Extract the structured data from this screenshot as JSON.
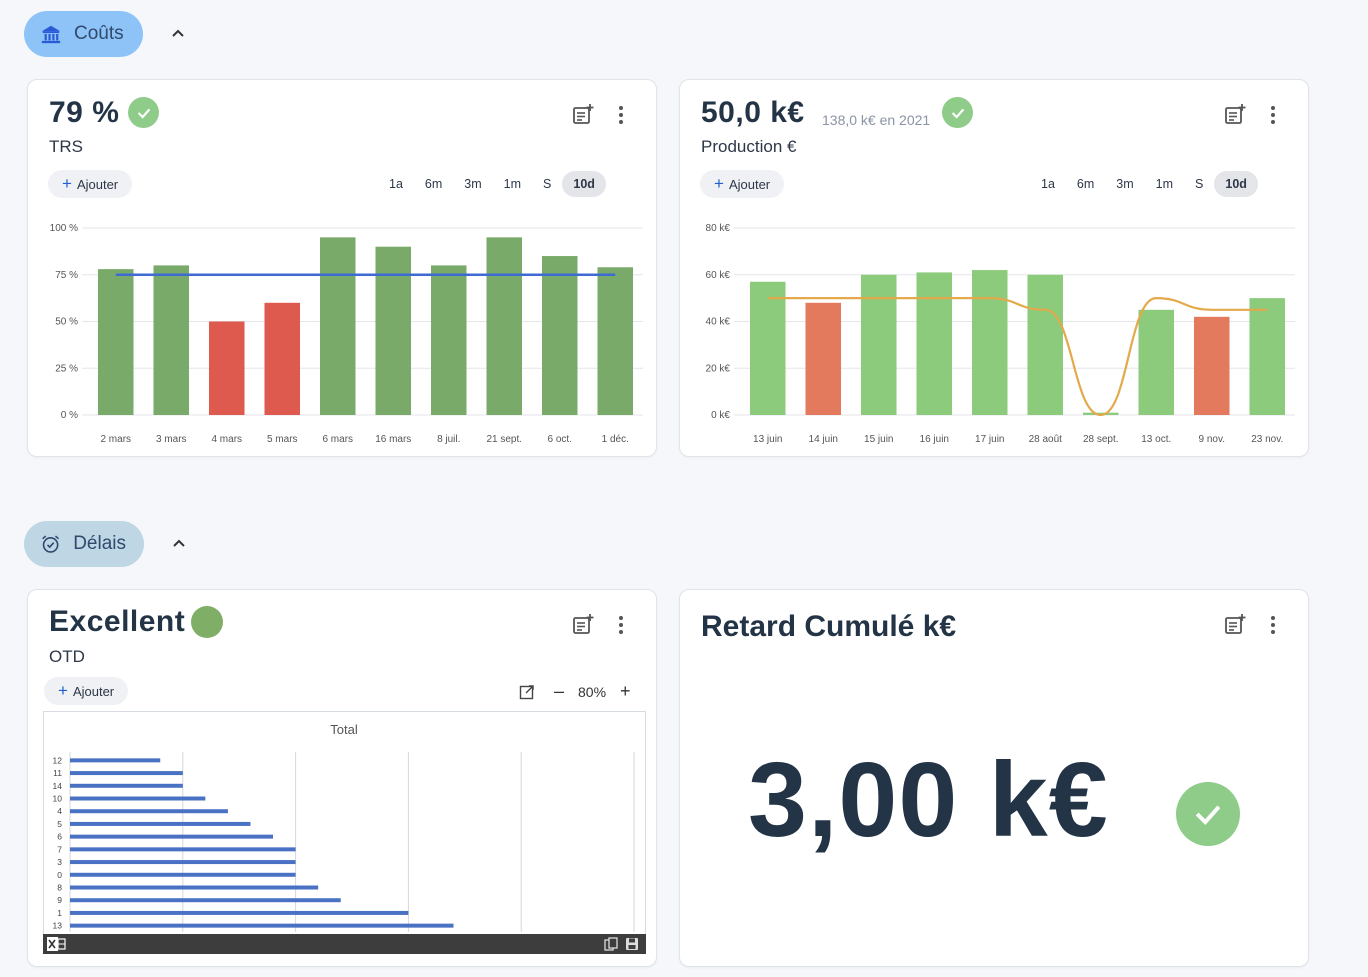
{
  "sections": {
    "costs": {
      "label": "Coûts"
    },
    "delays": {
      "label": "Délais"
    }
  },
  "colors": {
    "good": "#7aaa6a",
    "bad": "#de5a4e",
    "good_light": "#8ccb7c",
    "bad_light": "#e37a5e",
    "target": "#3d6bd1",
    "trend": "#e3a94b",
    "check": "#8fcc8a",
    "excel_bar": "#4a72c4"
  },
  "common": {
    "add_label": "Ajouter",
    "ranges": [
      "1a",
      "6m",
      "3m",
      "1m",
      "S",
      "10d"
    ],
    "active_range": "10d"
  },
  "trs_card": {
    "value": "79 %",
    "name": "TRS",
    "chart_data": {
      "type": "bar",
      "categories": [
        "2 mars",
        "3 mars",
        "4 mars",
        "5 mars",
        "6 mars",
        "16 mars",
        "8 juil.",
        "21 sept.",
        "6 oct.",
        "1 déc."
      ],
      "values": [
        78,
        80,
        50,
        60,
        95,
        90,
        80,
        95,
        85,
        79
      ],
      "status": [
        "good",
        "good",
        "bad",
        "bad",
        "good",
        "good",
        "good",
        "good",
        "good",
        "good"
      ],
      "target": 75,
      "ylim": [
        0,
        100
      ],
      "yticks": [
        0,
        25,
        50,
        75,
        100
      ],
      "ytick_labels": [
        "0 %",
        "25 %",
        "50 %",
        "75 %",
        "100 %"
      ]
    }
  },
  "production_card": {
    "value": "50,0 k€",
    "comparison": "138,0 k€ en 2021",
    "name": "Production €",
    "chart_data": {
      "type": "bar",
      "categories": [
        "13 juin",
        "14 juin",
        "15 juin",
        "16 juin",
        "17 juin",
        "28 août",
        "28 sept.",
        "13 oct.",
        "9 nov.",
        "23 nov."
      ],
      "values": [
        57,
        48,
        60,
        61,
        62,
        60,
        1,
        45,
        42,
        50
      ],
      "status": [
        "good",
        "bad",
        "good",
        "good",
        "good",
        "good",
        "good",
        "good",
        "bad",
        "good"
      ],
      "trend": [
        50,
        50,
        50,
        50,
        50,
        45,
        0,
        50,
        45,
        45
      ],
      "ylim": [
        0,
        80
      ],
      "yticks": [
        0,
        20,
        40,
        60,
        80
      ],
      "ytick_labels": [
        "0 k€",
        "20 k€",
        "40 k€",
        "60 k€",
        "80 k€"
      ]
    }
  },
  "otd_card": {
    "value": "Excellent",
    "name": "OTD",
    "zoom": "80%",
    "chart_data": {
      "type": "bar",
      "orientation": "horizontal",
      "title": "Total",
      "categories": [
        "12",
        "11",
        "14",
        "10",
        "4",
        "5",
        "6",
        "7",
        "3",
        "0",
        "8",
        "9",
        "1",
        "13"
      ],
      "values": [
        4,
        5,
        5,
        6,
        7,
        8,
        9,
        10,
        10,
        10,
        11,
        12,
        15,
        17
      ],
      "xlim": [
        0,
        25
      ]
    }
  },
  "delay_card": {
    "title": "Retard Cumulé k€",
    "value": "3,00 k€"
  }
}
